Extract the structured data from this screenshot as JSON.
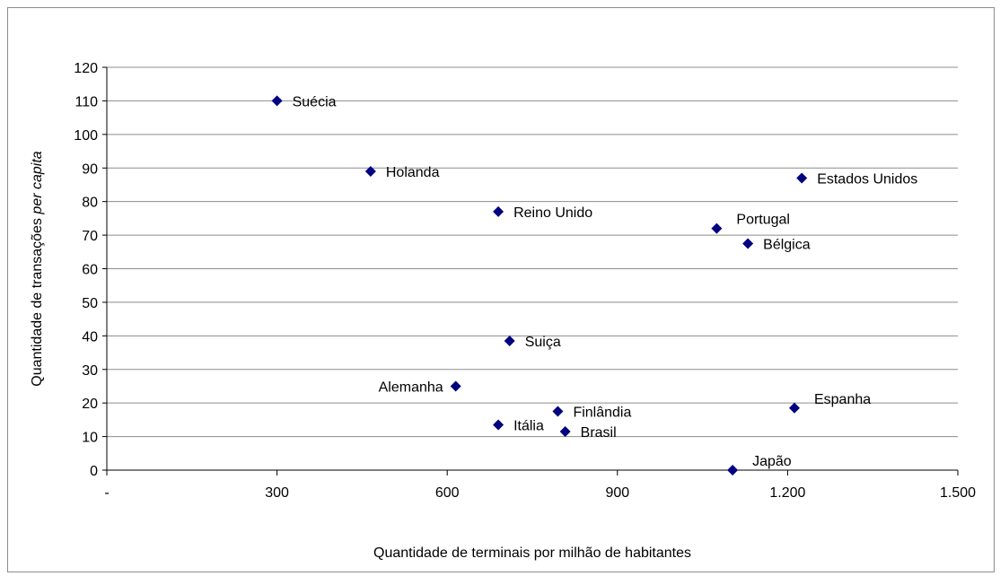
{
  "chart_data": {
    "type": "scatter",
    "title": "",
    "xlabel": "Quantidade de terminais por milhão de habitantes",
    "ylabel_parts": [
      "Quantidade de transações ",
      "per capita"
    ],
    "xlim": [
      0,
      1500
    ],
    "ylim": [
      0,
      120
    ],
    "x_ticks": [
      0,
      300,
      600,
      900,
      1200,
      1500
    ],
    "x_tick_labels": [
      "-",
      "300",
      "600",
      "900",
      "1.200",
      "1.500"
    ],
    "y_ticks": [
      0,
      10,
      20,
      30,
      40,
      50,
      60,
      70,
      80,
      90,
      100,
      110,
      120
    ],
    "y_tick_labels": [
      "0",
      "10",
      "20",
      "30",
      "40",
      "50",
      "60",
      "70",
      "80",
      "90",
      "100",
      "110",
      "120"
    ],
    "grid": "horizontal",
    "marker_color": "#000080",
    "points": [
      {
        "label": "Suécia",
        "x": 300,
        "y": 110,
        "pos": "right"
      },
      {
        "label": "Holanda",
        "x": 465,
        "y": 89,
        "pos": "right"
      },
      {
        "label": "Reino Unido",
        "x": 690,
        "y": 77,
        "pos": "right"
      },
      {
        "label": "Estados Unidos",
        "x": 1225,
        "y": 87,
        "pos": "right"
      },
      {
        "label": "Portugal",
        "x": 1075,
        "y": 72,
        "pos": "upright"
      },
      {
        "label": "Bélgica",
        "x": 1130,
        "y": 67.5,
        "pos": "right"
      },
      {
        "label": "Suiça",
        "x": 710,
        "y": 38.5,
        "pos": "right"
      },
      {
        "label": "Alemanha",
        "x": 615,
        "y": 25,
        "pos": "left"
      },
      {
        "label": "Finlândia",
        "x": 795,
        "y": 17.5,
        "pos": "right"
      },
      {
        "label": "Espanha",
        "x": 1212,
        "y": 18.5,
        "pos": "upright"
      },
      {
        "label": "Itália",
        "x": 690,
        "y": 13.5,
        "pos": "right"
      },
      {
        "label": "Brasil",
        "x": 808,
        "y": 11.5,
        "pos": "right"
      },
      {
        "label": "Japão",
        "x": 1103,
        "y": 0,
        "pos": "upright"
      }
    ]
  }
}
